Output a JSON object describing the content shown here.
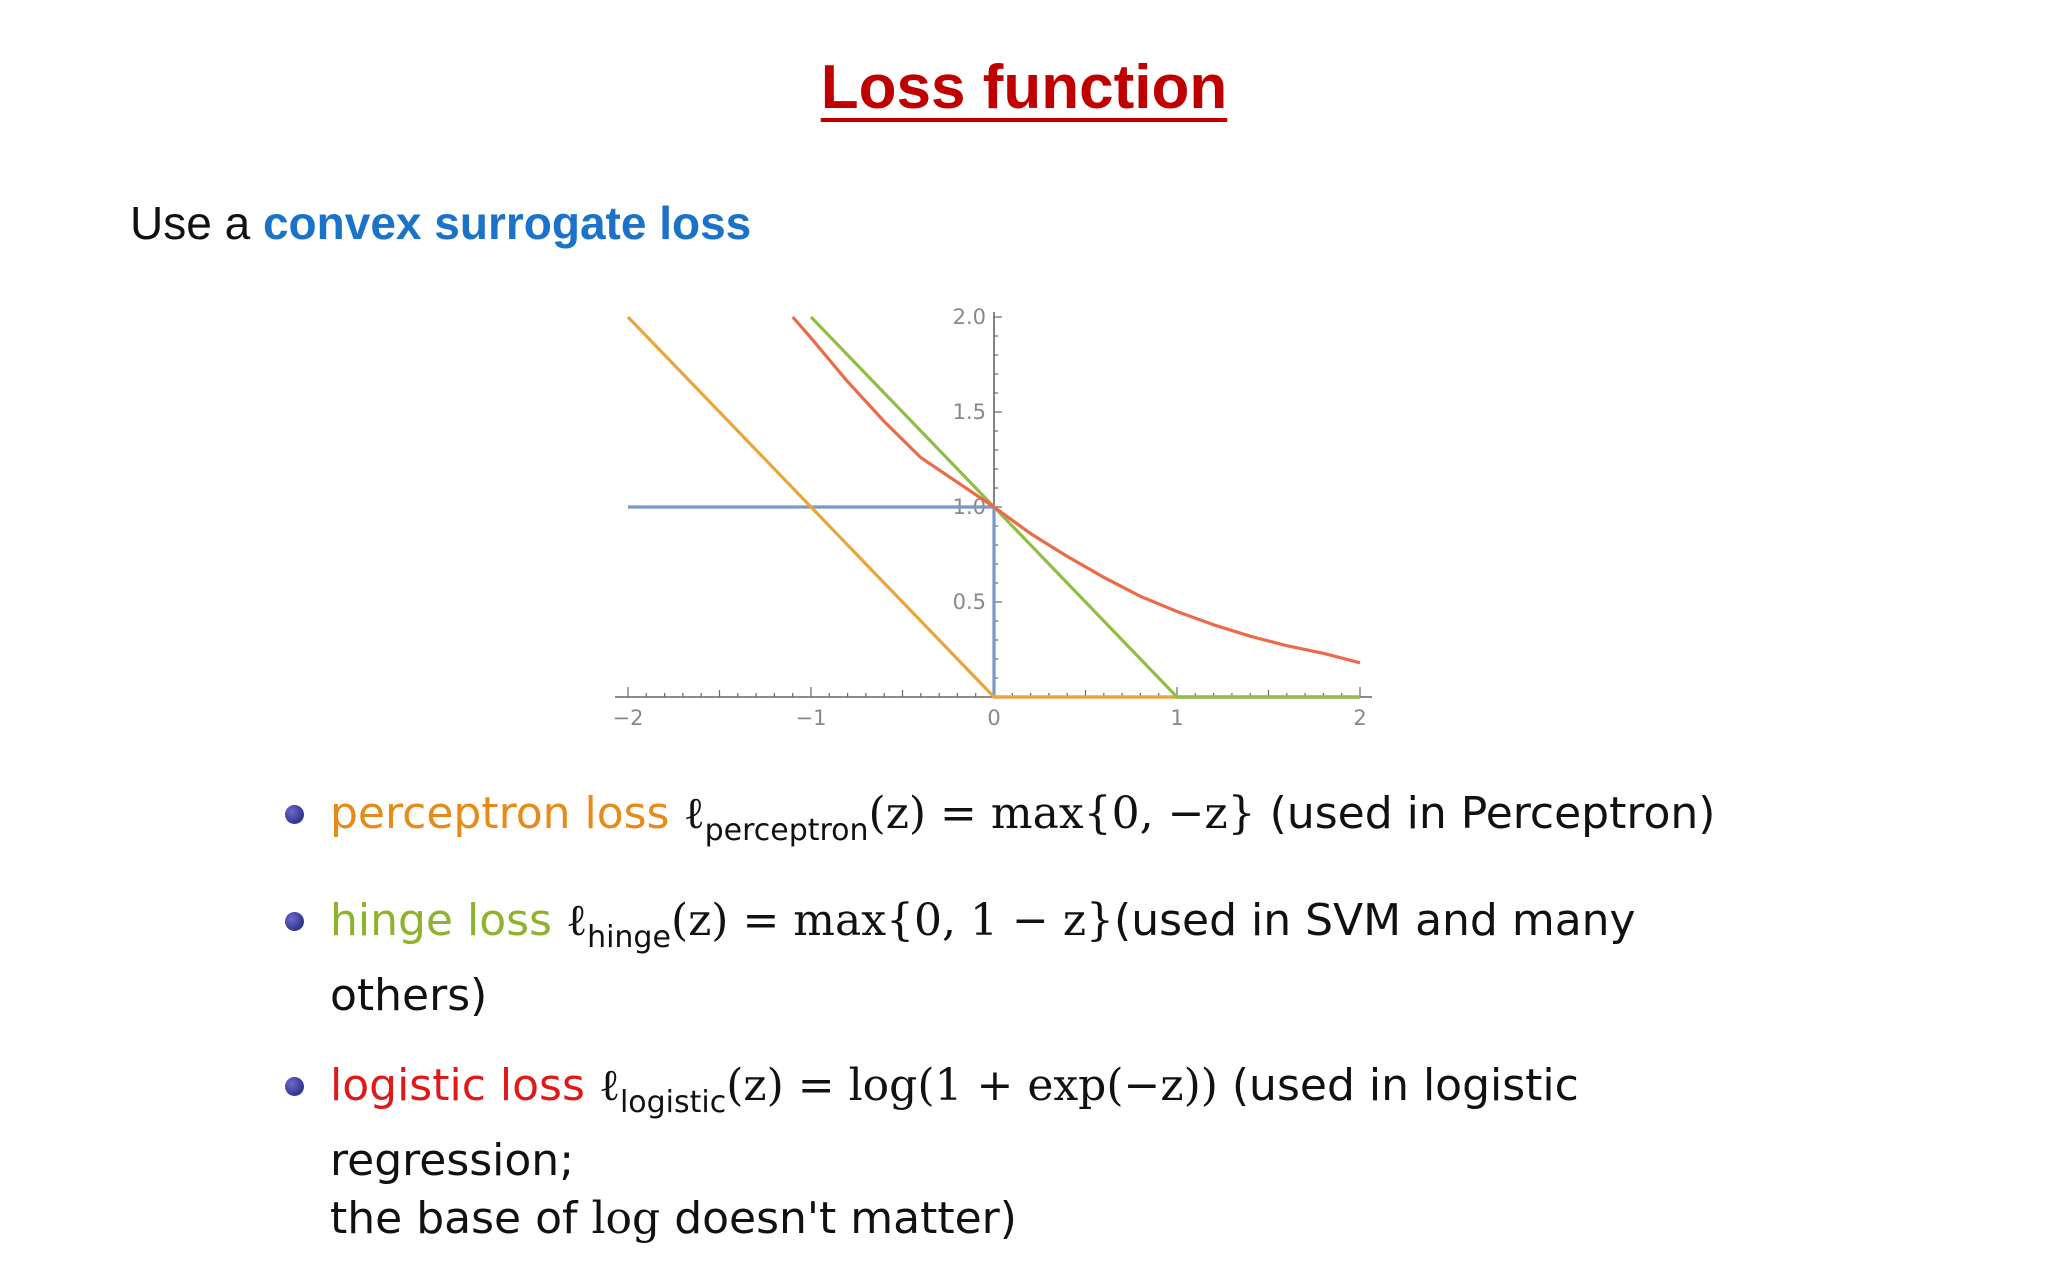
{
  "title": "Loss function",
  "subtitle": {
    "prefix": "Use a ",
    "highlight": "convex surrogate loss"
  },
  "colors": {
    "title": "#c00000",
    "highlight": "#1a73c8",
    "zero_one": "#7a98c8",
    "perceptron": "#e8a63a",
    "hinge": "#8fbd45",
    "logistic": "#ec6a4a"
  },
  "bullets": [
    {
      "name": "perceptron loss",
      "symbol": "ℓ",
      "subscript": "perceptron",
      "formula": "(z) = max{0, −z}",
      "note": " (used in Perceptron)"
    },
    {
      "name": "hinge loss",
      "symbol": "ℓ",
      "subscript": "hinge",
      "formula": "(z) = max{0, 1 − z}",
      "note": "(used in SVM and many others)"
    },
    {
      "name": "logistic loss",
      "symbol": "ℓ",
      "subscript": "logistic",
      "formula": "(z) = log(1 + exp(−z))",
      "note": " (used in logistic regression;",
      "line2_pre": "the base of ",
      "line2_math": "log",
      "line2_post": " doesn't matter)"
    }
  ],
  "chart_data": {
    "type": "line",
    "xlim": [
      -2,
      2
    ],
    "ylim": [
      0,
      2
    ],
    "x_ticks": [
      "-2",
      "-1",
      "0",
      "1",
      "2"
    ],
    "y_ticks": [
      "0.5",
      "1.0",
      "1.5",
      "2.0"
    ],
    "x_tick_values": [
      -2,
      -1,
      0,
      1,
      2
    ],
    "y_tick_values": [
      0.5,
      1.0,
      1.5,
      2.0
    ],
    "series": [
      {
        "key": "zero_one",
        "color": "#7a98c8",
        "points": [
          [
            -2,
            1
          ],
          [
            0,
            1
          ],
          [
            0,
            0
          ],
          [
            2,
            0
          ]
        ]
      },
      {
        "key": "perceptron",
        "color": "#e8a63a",
        "points": [
          [
            -2,
            2
          ],
          [
            0,
            0
          ],
          [
            2,
            0
          ]
        ]
      },
      {
        "key": "hinge",
        "color": "#8fbd45",
        "points": [
          [
            -1,
            2
          ],
          [
            1,
            0
          ],
          [
            2,
            0
          ]
        ]
      },
      {
        "key": "logistic",
        "color": "#ec6a4a",
        "points": [
          [
            -1.1,
            2.0
          ],
          [
            -1.0,
            1.89
          ],
          [
            -0.8,
            1.66
          ],
          [
            -0.6,
            1.45
          ],
          [
            -0.4,
            1.26
          ],
          [
            -0.2,
            1.13
          ],
          [
            0,
            1.0
          ],
          [
            0.2,
            0.86
          ],
          [
            0.4,
            0.74
          ],
          [
            0.6,
            0.63
          ],
          [
            0.8,
            0.53
          ],
          [
            1.0,
            0.45
          ],
          [
            1.2,
            0.38
          ],
          [
            1.4,
            0.32
          ],
          [
            1.6,
            0.27
          ],
          [
            1.8,
            0.23
          ],
          [
            2.0,
            0.18
          ]
        ]
      }
    ]
  }
}
